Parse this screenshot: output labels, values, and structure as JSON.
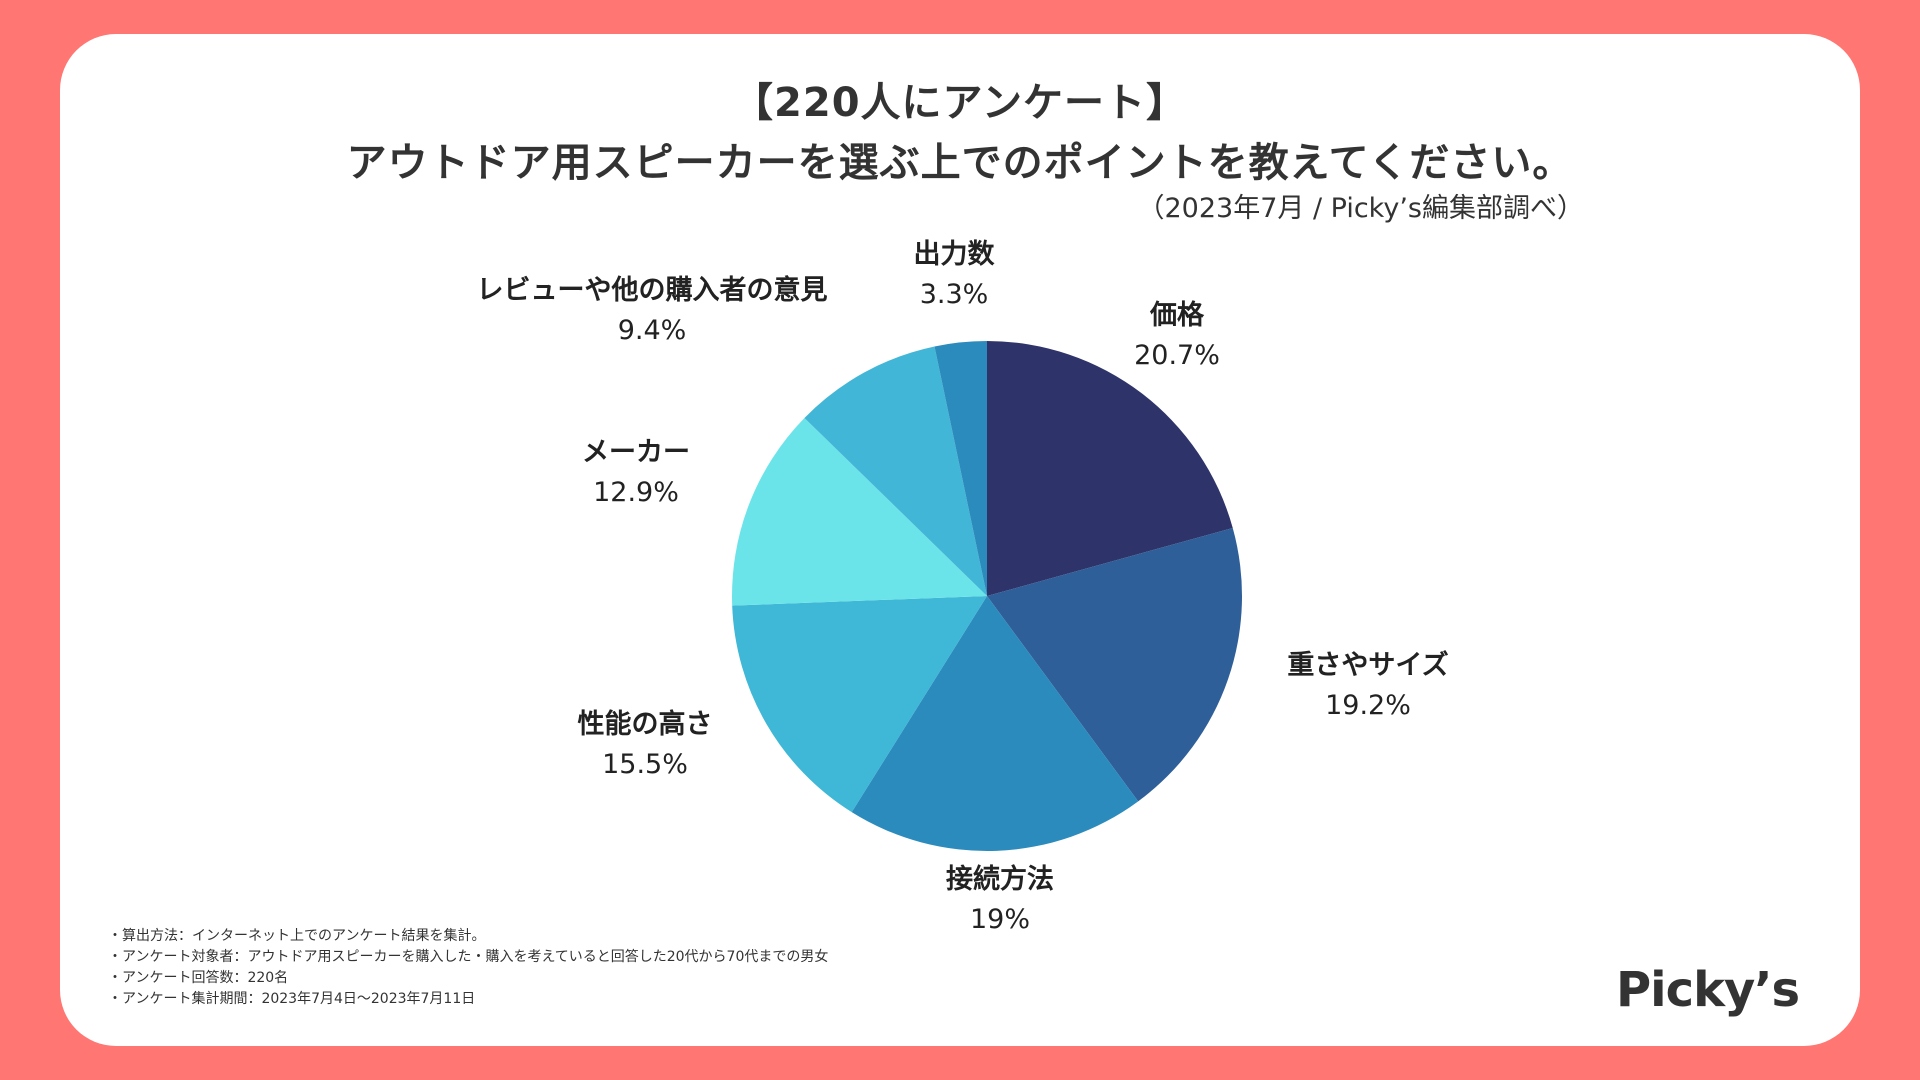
{
  "title": {
    "line1": "【220人にアンケート】",
    "line2": "アウトドア用スピーカーを選ぶ上でのポイントを教えてください。",
    "source": "（2023年7月 / Picky’s編集部調べ）"
  },
  "chart_data": {
    "type": "pie",
    "title": "アウトドア用スピーカーを選ぶ上でのポイントを教えてください。",
    "unit": "%",
    "start": "12 o'clock",
    "direction": "clockwise",
    "slices": [
      {
        "label": "価格",
        "value": 20.7,
        "display": "20.7%",
        "color": "#2e3369"
      },
      {
        "label": "重さやサイズ",
        "value": 19.2,
        "display": "19.2%",
        "color": "#2f5f98"
      },
      {
        "label": "接続方法",
        "value": 19,
        "display": "19%",
        "color": "#2b8bbd"
      },
      {
        "label": "性能の高さ",
        "value": 15.5,
        "display": "15.5%",
        "color": "#3fb7d6"
      },
      {
        "label": "メーカー",
        "value": 12.9,
        "display": "12.9%",
        "color": "#6be4e9"
      },
      {
        "label": "レビューや他の購入者の意見",
        "value": 9.4,
        "display": "9.4%",
        "color": "#41b6d6"
      },
      {
        "label": "出力数",
        "value": 3.3,
        "display": "3.3%",
        "color": "#2c8bbd"
      }
    ]
  },
  "notes": [
    "算出方法：インターネット上でのアンケート結果を集計。",
    "アンケート対象者：アウトドア用スピーカーを購入した・購入を考えていると回答した20代から70代までの男女",
    "アンケート回答数：220名",
    "アンケート集計期間：2023年7月4日〜2023年7月11日"
  ],
  "logo": "Picky’s",
  "colors": {
    "background": "#ff7672",
    "card": "#ffffff",
    "text": "#333333"
  }
}
